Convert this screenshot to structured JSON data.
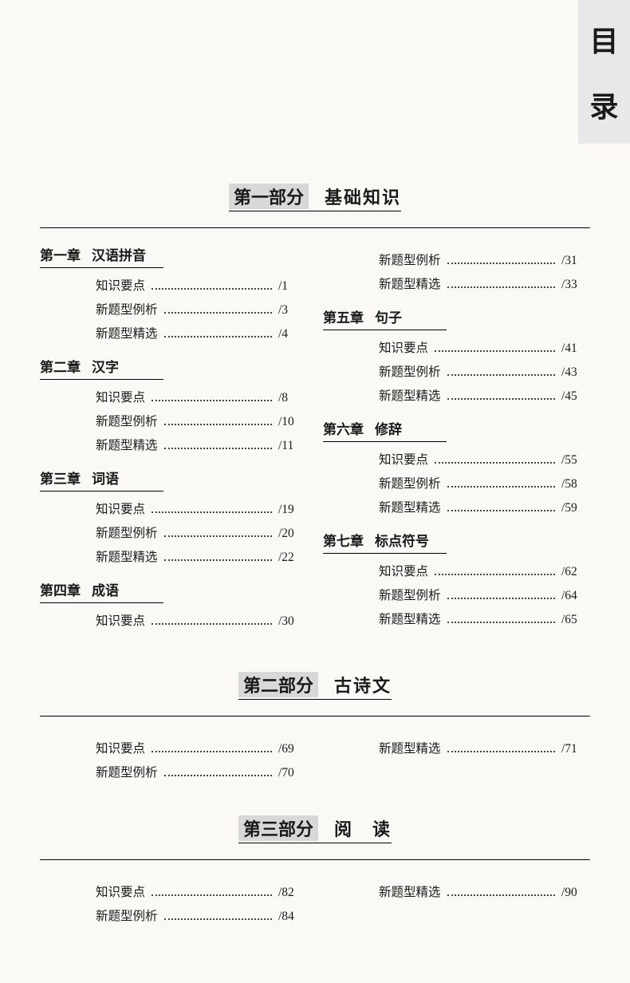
{
  "page_mark": {
    "char1": "目",
    "char2": "录"
  },
  "parts": [
    {
      "label": "第一部分",
      "title": "基础知识",
      "spaced": false,
      "layout": "chapters",
      "columns": [
        [
          {
            "num": "第一章",
            "title": "汉语拼音",
            "entries": [
              {
                "label": "知识要点",
                "page": "/1"
              },
              {
                "label": "新题型例析",
                "page": "/3"
              },
              {
                "label": "新题型精选",
                "page": "/4"
              }
            ]
          },
          {
            "num": "第二章",
            "title": "汉字",
            "entries": [
              {
                "label": "知识要点",
                "page": "/8"
              },
              {
                "label": "新题型例析",
                "page": "/10"
              },
              {
                "label": "新题型精选",
                "page": "/11"
              }
            ]
          },
          {
            "num": "第三章",
            "title": "词语",
            "entries": [
              {
                "label": "知识要点",
                "page": "/19"
              },
              {
                "label": "新题型例析",
                "page": "/20"
              },
              {
                "label": "新题型精选",
                "page": "/22"
              }
            ]
          },
          {
            "num": "第四章",
            "title": "成语",
            "entries": [
              {
                "label": "知识要点",
                "page": "/30"
              }
            ]
          }
        ],
        [
          {
            "num": "",
            "title": "",
            "continued": true,
            "entries": [
              {
                "label": "新题型例析",
                "page": "/31"
              },
              {
                "label": "新题型精选",
                "page": "/33"
              }
            ]
          },
          {
            "num": "第五章",
            "title": "句子",
            "entries": [
              {
                "label": "知识要点",
                "page": "/41"
              },
              {
                "label": "新题型例析",
                "page": "/43"
              },
              {
                "label": "新题型精选",
                "page": "/45"
              }
            ]
          },
          {
            "num": "第六章",
            "title": "修辞",
            "entries": [
              {
                "label": "知识要点",
                "page": "/55"
              },
              {
                "label": "新题型例析",
                "page": "/58"
              },
              {
                "label": "新题型精选",
                "page": "/59"
              }
            ]
          },
          {
            "num": "第七章",
            "title": "标点符号",
            "entries": [
              {
                "label": "知识要点",
                "page": "/62"
              },
              {
                "label": "新题型例析",
                "page": "/64"
              },
              {
                "label": "新题型精选",
                "page": "/65"
              }
            ]
          }
        ]
      ]
    },
    {
      "label": "第二部分",
      "title": "古诗文",
      "spaced": false,
      "layout": "flat",
      "columns": [
        [
          {
            "label": "知识要点",
            "page": "/69"
          },
          {
            "label": "新题型例析",
            "page": "/70"
          }
        ],
        [
          {
            "label": "新题型精选",
            "page": "/71"
          }
        ]
      ]
    },
    {
      "label": "第三部分",
      "title": "阅　读",
      "spaced": false,
      "layout": "flat",
      "columns": [
        [
          {
            "label": "知识要点",
            "page": "/82"
          },
          {
            "label": "新题型例析",
            "page": "/84"
          }
        ],
        [
          {
            "label": "新题型精选",
            "page": "/90"
          }
        ]
      ]
    }
  ]
}
